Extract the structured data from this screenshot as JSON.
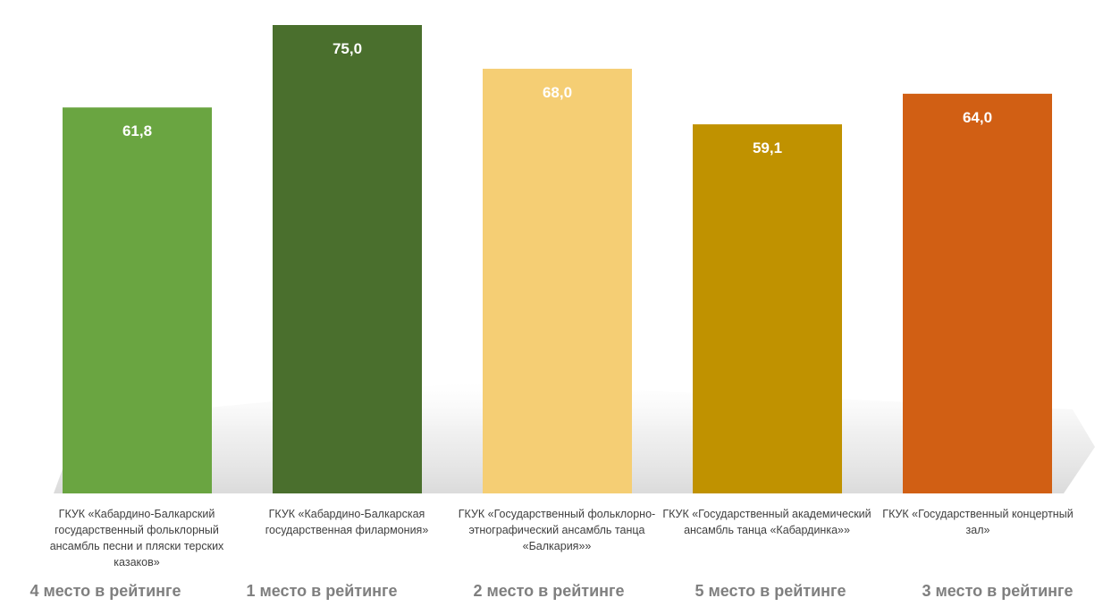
{
  "chart_data": {
    "type": "bar",
    "categories": [
      "ГКУК «Кабардино-Балкарский государственный фольклорный ансамбль песни и пляски  терских казаков»",
      "ГКУК «Кабардино-Балкарская государственная филармония»",
      "ГКУК «Государственный фольклорно-этнографический ансамбль танца «Балкария»»",
      "ГКУК «Государственный академический ансамбль танца «Кабардинка»»",
      "ГКУК «Государственный концертный зал»"
    ],
    "values": [
      61.8,
      75.0,
      68.0,
      59.1,
      64.0
    ],
    "value_labels": [
      "61,8",
      "75,0",
      "68,0",
      "59,1",
      "64,0"
    ],
    "colors": [
      "#6aa541",
      "#4a6f2d",
      "#f5ce74",
      "#c09200",
      "#d15f14"
    ],
    "rank_labels": [
      "4 место в рейтинге",
      "1 место в рейтинге",
      "2 место в рейтинге",
      "5 место в рейтинге",
      "3 место в рейтинге"
    ],
    "title": "",
    "xlabel": "",
    "ylabel": "",
    "ylim": [
      0,
      75
    ],
    "grid": false,
    "legend": "none"
  }
}
